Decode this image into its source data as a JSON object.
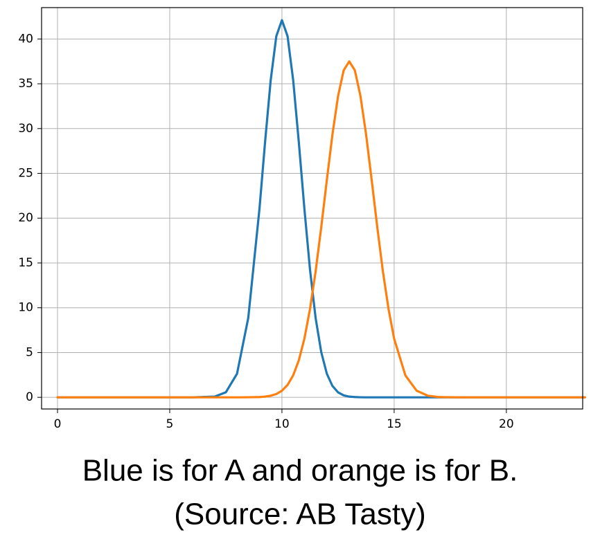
{
  "chart_data": {
    "type": "line",
    "x": [
      0,
      2,
      4,
      6,
      7,
      7.5,
      8,
      8.5,
      9,
      9.25,
      9.5,
      9.75,
      10,
      10.25,
      10.5,
      10.75,
      11,
      11.25,
      11.5,
      11.75,
      12,
      12.25,
      12.5,
      12.75,
      13,
      13.25,
      13.5,
      13.75,
      14,
      14.25,
      14.5,
      14.75,
      15,
      15.5,
      16,
      16.5,
      17,
      18,
      20,
      22,
      23.5
    ],
    "series": [
      {
        "color": "#1f77b4",
        "values": [
          0,
          0,
          0,
          0,
          0.08,
          0.56,
          2.64,
          8.87,
          21.07,
          28.54,
          35.42,
          40.32,
          42.1,
          40.32,
          35.42,
          28.54,
          21.07,
          14.27,
          8.87,
          5.06,
          2.64,
          1.27,
          0.56,
          0.22,
          0.08,
          0.03,
          0.01,
          0,
          0,
          0,
          0,
          0,
          0,
          0,
          0,
          0,
          0,
          0,
          0,
          0,
          0
        ]
      },
      {
        "color": "#ff7f0e",
        "values": [
          0,
          0,
          0,
          0,
          0,
          0,
          0,
          0.01,
          0.03,
          0.08,
          0.18,
          0.37,
          0.74,
          1.38,
          2.45,
          4.11,
          6.54,
          9.85,
          14.03,
          18.96,
          24.23,
          29.33,
          33.61,
          36.49,
          37.5,
          36.49,
          33.61,
          29.33,
          24.23,
          18.96,
          14.03,
          9.85,
          6.54,
          2.45,
          0.74,
          0.18,
          0.03,
          0,
          0,
          0,
          0
        ]
      }
    ],
    "xlim": [
      -0.71,
      23.4
    ],
    "xticks": [
      0,
      5,
      10,
      15,
      20
    ],
    "ylim": [
      -1.3,
      43.5
    ],
    "yticks": [
      0,
      5,
      10,
      15,
      20,
      25,
      30,
      35,
      40
    ],
    "grid": true
  },
  "caption": [
    "Blue is for A and orange is for B.",
    "(Source: AB Tasty)"
  ]
}
